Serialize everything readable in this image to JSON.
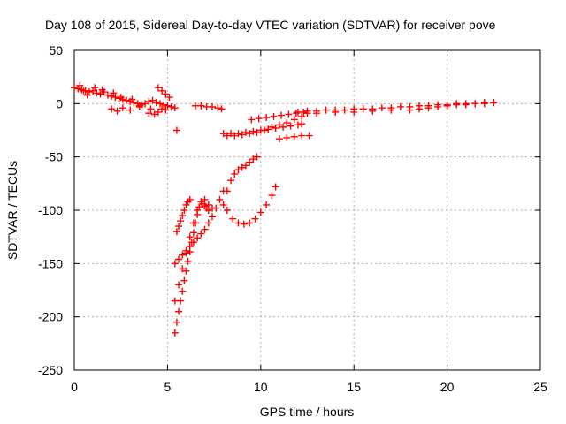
{
  "chart_data": {
    "type": "scatter",
    "title": "Day 108 of 2015, Sidereal Day-to-day VTEC variation (SDTVAR) for receiver pove",
    "xlabel": "GPS time / hours",
    "ylabel": "SDTVAR / TECUs",
    "xlim": [
      0,
      25
    ],
    "ylim": [
      -250,
      50
    ],
    "xticks": [
      0,
      5,
      10,
      15,
      20,
      25
    ],
    "yticks": [
      -250,
      -200,
      -150,
      -100,
      -50,
      0,
      50
    ],
    "grid": true,
    "marker": "plus",
    "color": "#ff0000",
    "series": [
      {
        "x": [
          0.0,
          0.2,
          0.4,
          0.6,
          0.8,
          1.0,
          1.2,
          1.4,
          1.6,
          1.8,
          2.0,
          2.2,
          2.4,
          2.6,
          2.8,
          3.0,
          3.2,
          3.4,
          3.6,
          3.8,
          4.0,
          4.2,
          4.4,
          4.6,
          4.8,
          5.0,
          5.2,
          5.4,
          0.3,
          0.5,
          0.7,
          1.1,
          1.5,
          2.1,
          2.5,
          3.1,
          3.5,
          4.1,
          4.5,
          4.9,
          2.0,
          2.3,
          2.6,
          3.0,
          3.5,
          4.0,
          4.3,
          4.7,
          4.5,
          4.7,
          4.9,
          5.1,
          5.5,
          6.5,
          6.8,
          7.1,
          7.4,
          7.7,
          7.9,
          8.2,
          8.6,
          9.0,
          9.4,
          9.8,
          10.2,
          10.6,
          11.0,
          11.4,
          11.8,
          12.2,
          8.0,
          8.4,
          8.8,
          9.2,
          9.6,
          10.0,
          10.4,
          10.8,
          11.2,
          11.6,
          12.0,
          12.2,
          9.5,
          9.9,
          10.3,
          10.7,
          11.1,
          11.5,
          11.9,
          12.3,
          11.0,
          11.4,
          11.8,
          12.2,
          12.6,
          12.0,
          12.5,
          13.0,
          13.5,
          14.0,
          14.5,
          15.0,
          15.5,
          16.0,
          16.5,
          17.0,
          17.5,
          18.0,
          18.5,
          19.0,
          19.5,
          20.0,
          20.5,
          21.0,
          21.5,
          22.0,
          22.5,
          12.5,
          13.0,
          14.0,
          15.0,
          16.0,
          17.0,
          18.0,
          18.5,
          19.0,
          19.5,
          20.0,
          20.5,
          21.0,
          21.5,
          22.0,
          22.5,
          5.5,
          5.6,
          5.7,
          5.8,
          5.9,
          6.0,
          6.1,
          6.2,
          5.4,
          5.6,
          5.8,
          6.0,
          6.2,
          6.4,
          6.6,
          6.8,
          7.0,
          7.2,
          7.4,
          7.6,
          7.8,
          8.0,
          5.4,
          5.5,
          5.6,
          5.7,
          5.8,
          5.9,
          6.0,
          6.1,
          6.2,
          6.3,
          6.4,
          6.5,
          6.6,
          6.7,
          6.8,
          6.9,
          7.0,
          7.1,
          7.2,
          5.4,
          5.6,
          5.8,
          6.0,
          6.2,
          6.4,
          6.6,
          6.8,
          7.0,
          7.2,
          7.4,
          8.0,
          8.2,
          8.4,
          8.6,
          8.8,
          9.0,
          9.2,
          9.4,
          9.6,
          9.8,
          8.2,
          8.5,
          8.8,
          9.1,
          9.4,
          9.7,
          10.0,
          10.3,
          10.6,
          10.8
        ],
        "y": [
          15,
          14,
          13,
          12,
          11,
          12,
          10,
          9,
          11,
          8,
          7,
          6,
          5,
          4,
          3,
          2,
          1,
          0,
          -1,
          0,
          2,
          3,
          1,
          0,
          -1,
          -2,
          -3,
          -4,
          17,
          12,
          8,
          15,
          13,
          10,
          6,
          4,
          -2,
          -5,
          -8,
          -6,
          -5,
          -7,
          -4,
          -6,
          -3,
          -9,
          -10,
          -5,
          15,
          12,
          9,
          6,
          -25,
          -2,
          -2,
          -3,
          -3,
          -4,
          -5,
          -30,
          -30,
          -29,
          -28,
          -27,
          -25,
          -22,
          -20,
          -18,
          -15,
          -12,
          -28,
          -28,
          -28,
          -27,
          -26,
          -25,
          -24,
          -23,
          -22,
          -21,
          -20,
          -19,
          -15,
          -14,
          -13,
          -12,
          -11,
          -10,
          -9,
          -8,
          -33,
          -32,
          -31,
          -30,
          -30,
          -8,
          -7,
          -7,
          -6,
          -6,
          -6,
          -5,
          -5,
          -5,
          -4,
          -4,
          -3,
          -3,
          -2,
          -2,
          -1,
          -1,
          0,
          0,
          0,
          1,
          1,
          -9,
          -9,
          -8,
          -8,
          -7,
          -6,
          -6,
          -5,
          -4,
          -3,
          -2,
          -1,
          -1,
          0,
          0,
          1,
          -120,
          -115,
          -110,
          -105,
          -100,
          -95,
          -92,
          -90,
          -150,
          -146,
          -142,
          -138,
          -134,
          -130,
          -126,
          -122,
          -118,
          -112,
          -106,
          -98,
          -90,
          -82,
          -215,
          -205,
          -195,
          -185,
          -176,
          -166,
          -157,
          -148,
          -139,
          -130,
          -121,
          -112,
          -104,
          -97,
          -92,
          -94,
          -96,
          -98,
          -100,
          -185,
          -170,
          -155,
          -140,
          -125,
          -112,
          -100,
          -92,
          -90,
          -95,
          -98,
          -95,
          -82,
          -72,
          -66,
          -62,
          -60,
          -58,
          -55,
          -52,
          -50,
          -100,
          -108,
          -112,
          -113,
          -112,
          -108,
          -102,
          -95,
          -86,
          -78
        ]
      }
    ]
  }
}
